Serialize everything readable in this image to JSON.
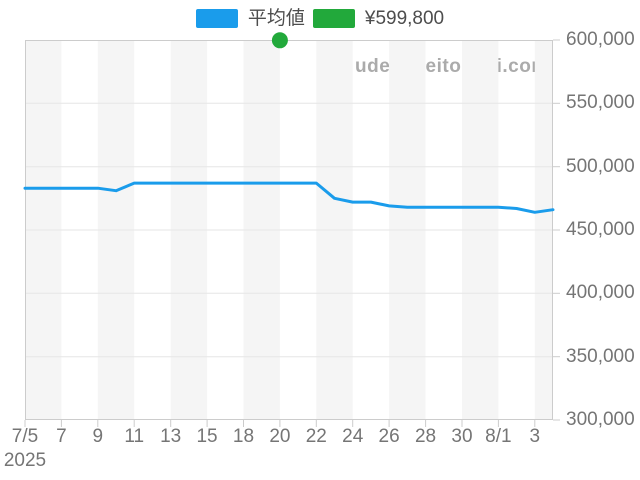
{
  "legend": {
    "items": [
      {
        "id": "average",
        "label": "平均値",
        "color": "#1a9ceb"
      },
      {
        "id": "latest-price",
        "label": "¥599,800",
        "color": "#22a93b"
      }
    ]
  },
  "watermark": "udedokeitoushi.com",
  "chart_data": {
    "type": "line",
    "title": "",
    "xlabel": "",
    "ylabel": "",
    "x": [
      "7/5",
      "7/6",
      "7/7",
      "7/8",
      "7/9",
      "7/10",
      "7/11",
      "7/12",
      "7/13",
      "7/14",
      "7/15",
      "7/16",
      "7/18",
      "7/19",
      "7/20",
      "7/21",
      "7/22",
      "7/23",
      "7/24",
      "7/25",
      "7/26",
      "7/27",
      "7/28",
      "7/29",
      "7/30",
      "7/31",
      "8/1",
      "8/2",
      "8/3",
      "8/4"
    ],
    "series": [
      {
        "name": "平均値",
        "type": "line",
        "color": "#1a9ceb",
        "values": [
          483000,
          483000,
          483000,
          483000,
          483000,
          481000,
          487000,
          487000,
          487000,
          487000,
          487000,
          487000,
          487000,
          487000,
          487000,
          487000,
          487000,
          475000,
          472000,
          472000,
          469000,
          468000,
          468000,
          468000,
          468000,
          468000,
          468000,
          467000,
          464000,
          466000
        ]
      },
      {
        "name": "¥599,800",
        "type": "scatter",
        "color": "#22a93b",
        "points": [
          {
            "x": "7/20",
            "value": 599800
          }
        ]
      }
    ],
    "x_axis": {
      "tick_labels": [
        "7/5",
        "7",
        "9",
        "11",
        "13",
        "15",
        "18",
        "20",
        "22",
        "24",
        "26",
        "28",
        "30",
        "8/1",
        "3"
      ],
      "year_label": "2025"
    },
    "y_axis": {
      "position": "right",
      "min": 300000,
      "max": 600000,
      "step": 50000,
      "tick_labels": [
        "600,000",
        "550,000",
        "500,000",
        "450,000",
        "400,000",
        "350,000",
        "300,000"
      ]
    },
    "grid": true,
    "legend_position": "top",
    "style": {
      "plot_band_color": "#f5f5f5",
      "grid_color": "#e6e6e6",
      "border_color": "#cccccc",
      "axis_text_color": "#757575"
    }
  }
}
